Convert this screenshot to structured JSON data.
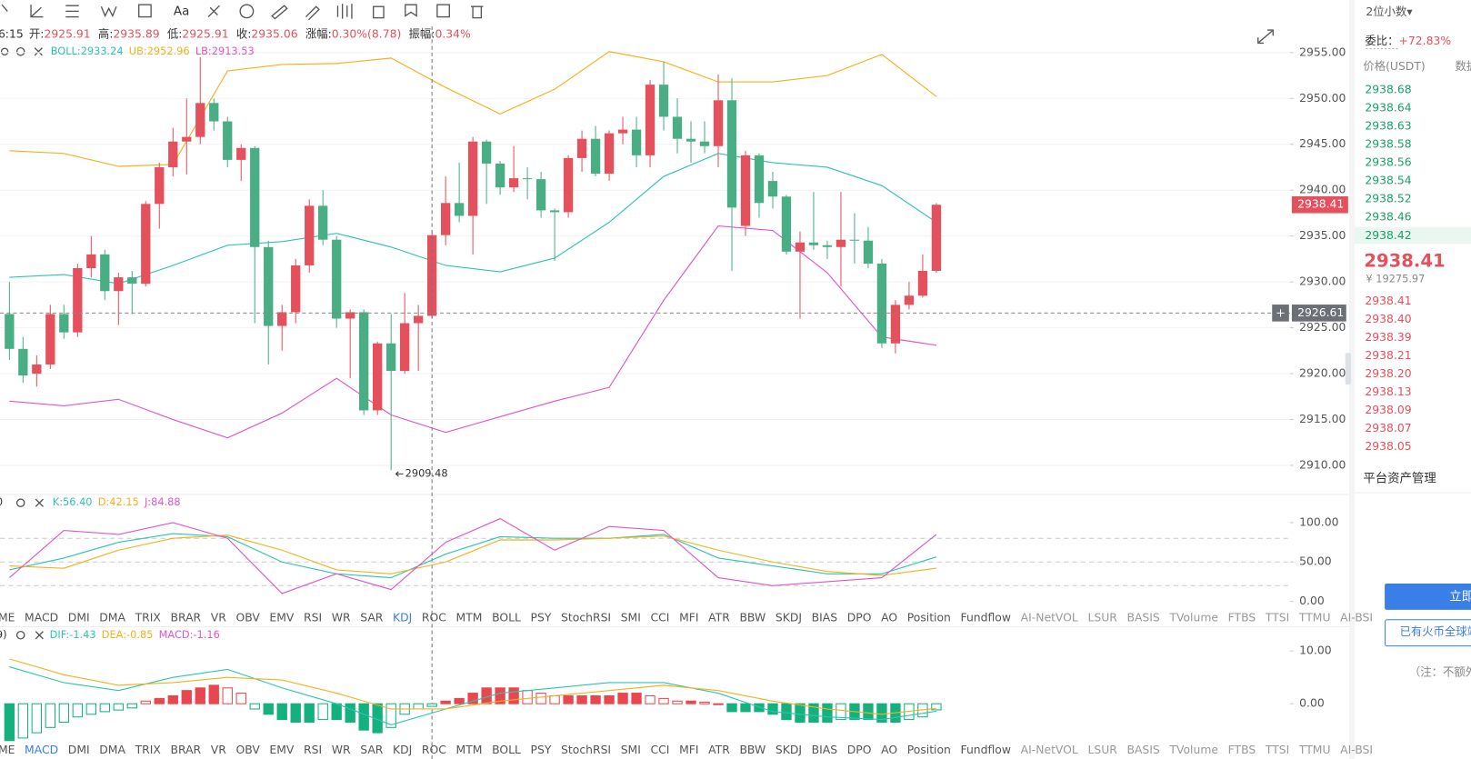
{
  "toolbar": {
    "font_button": "Aa"
  },
  "header": {
    "time": "6:15",
    "items": [
      {
        "label": "开:",
        "value": "2925.91"
      },
      {
        "label": "高:",
        "value": "2935.89"
      },
      {
        "label": "低:",
        "value": "2925.91"
      },
      {
        "label": "收:",
        "value": "2935.06"
      },
      {
        "label": "涨幅:",
        "value": "0.30%(8.78)"
      },
      {
        "label": "振幅:",
        "value": "0.34%"
      }
    ]
  },
  "indicator_tabs": [
    "ME",
    "MACD",
    "DMI",
    "DMA",
    "TRIX",
    "BRAR",
    "VR",
    "OBV",
    "EMV",
    "RSI",
    "WR",
    "SAR",
    "KDJ",
    "ROC",
    "MTM",
    "BOLL",
    "PSY",
    "StochRSI",
    "SMI",
    "CCI",
    "MFI",
    "ATR",
    "BBW",
    "SKDJ",
    "BIAS",
    "DPO",
    "AO",
    "Position",
    "Fundflow",
    "AI-NetVOL",
    "LSUR",
    "BASIS",
    "TVolume",
    "FTBS",
    "TTSI",
    "TTMU",
    "AI-BSI"
  ],
  "chart_data": [
    {
      "type": "candlestick",
      "xlim": [
        -0.69,
        93.94
      ],
      "ylim": [
        2907.04,
        2957.66
      ],
      "grid": true,
      "yticks": [
        {
          "value": 2955,
          "label": "2955.00"
        },
        {
          "value": 2950,
          "label": "2950.00"
        },
        {
          "value": 2945,
          "label": "2945.00"
        },
        {
          "value": 2940,
          "label": "2940.00"
        },
        {
          "value": 2935,
          "label": "2935.00"
        },
        {
          "value": 2930,
          "label": "2930.00"
        },
        {
          "value": 2925,
          "label": "2925.00"
        },
        {
          "value": 2920,
          "label": "2920.00"
        },
        {
          "value": 2915,
          "label": "2915.00"
        },
        {
          "value": 2910,
          "label": "2910.00"
        }
      ],
      "up_color": "#e5505d",
      "down_color": "#4aae85",
      "open": [
        2926.5,
        2922.7,
        2920.0,
        2921.0,
        2926.5,
        2924.5,
        2931.5,
        2933.0,
        2929.0,
        2930.5,
        2929.8,
        2938.5,
        2942.5,
        2945.3,
        2945.8,
        2949.5,
        2947.5,
        2943.3,
        2944.6,
        2933.8,
        2925.2,
        2926.7,
        2931.8,
        2938.3,
        2934.6,
        2926.0,
        2926.7,
        2916.0,
        2923.3,
        2920.3,
        2925.5,
        2926.3,
        2935.1,
        2938.6,
        2937.2,
        2945.3,
        2942.9,
        2940.3,
        2941.3,
        2941.2,
        2937.8,
        2937.6,
        2943.5,
        2945.6,
        2941.8,
        2946.2,
        2946.6,
        2943.8,
        2951.5,
        2948.0,
        2945.6,
        2945.3,
        2944.8,
        2949.8,
        2936.1,
        2943.8,
        2941.0,
        2939.3,
        2933.3,
        2934.3,
        2934.0,
        2933.8,
        2934.6,
        2934.5,
        2932.0,
        2923.3,
        2927.5,
        2928.5,
        2931.2
      ],
      "high": [
        2930.0,
        2924.0,
        2922.0,
        2927.5,
        2927.5,
        2932.0,
        2935.0,
        2933.5,
        2931.0,
        2931.2,
        2938.8,
        2943.0,
        2946.8,
        2950.0,
        2954.5,
        2950.0,
        2948.0,
        2945.0,
        2944.8,
        2934.5,
        2927.5,
        2932.5,
        2939.0,
        2940.0,
        2935.0,
        2927.0,
        2927.0,
        2923.5,
        2926.5,
        2928.8,
        2927.5,
        2935.5,
        2941.5,
        2943.0,
        2945.8,
        2945.5,
        2943.2,
        2944.8,
        2942.5,
        2942.0,
        2938.0,
        2943.8,
        2946.5,
        2947.0,
        2946.5,
        2948.0,
        2948.0,
        2952.0,
        2954.0,
        2950.0,
        2947.5,
        2947.5,
        2952.6,
        2952.2,
        2944.3,
        2944.0,
        2942.0,
        2939.5,
        2935.5,
        2939.8,
        2934.5,
        2939.8,
        2937.5,
        2936.0,
        2932.5,
        2928.0,
        2930.0,
        2933.0,
        2938.6
      ],
      "low": [
        2921.5,
        2919.0,
        2918.6,
        2920.5,
        2923.8,
        2924.0,
        2930.5,
        2928.0,
        2925.3,
        2926.5,
        2929.5,
        2935.8,
        2941.5,
        2941.7,
        2945.0,
        2946.5,
        2942.5,
        2941.0,
        2925.5,
        2921.0,
        2922.5,
        2925.5,
        2931.0,
        2934.0,
        2925.0,
        2919.5,
        2915.5,
        2915.5,
        2909.48,
        2920.0,
        2920.3,
        2926.0,
        2934.0,
        2936.5,
        2933.0,
        2938.5,
        2939.5,
        2939.8,
        2939.0,
        2937.0,
        2932.3,
        2937.0,
        2942.0,
        2941.5,
        2941.0,
        2945.0,
        2942.5,
        2942.5,
        2946.5,
        2944.0,
        2943.0,
        2944.0,
        2942.5,
        2931.2,
        2935.0,
        2937.0,
        2938.0,
        2933.0,
        2926.0,
        2933.5,
        2932.5,
        2929.5,
        2932.0,
        2931.5,
        2922.8,
        2922.2,
        2927.0,
        2928.3,
        2931.0
      ],
      "close": [
        2922.7,
        2919.8,
        2921.0,
        2926.5,
        2924.5,
        2931.5,
        2933.0,
        2929.0,
        2930.5,
        2929.8,
        2938.5,
        2942.5,
        2945.3,
        2945.8,
        2949.5,
        2947.5,
        2943.3,
        2944.6,
        2933.8,
        2925.2,
        2926.7,
        2931.8,
        2938.3,
        2934.6,
        2926.0,
        2926.7,
        2916.0,
        2923.3,
        2920.3,
        2925.5,
        2926.3,
        2935.1,
        2938.6,
        2937.2,
        2945.3,
        2942.9,
        2940.3,
        2941.3,
        2941.2,
        2937.8,
        2937.6,
        2943.5,
        2945.6,
        2941.8,
        2946.2,
        2946.6,
        2943.8,
        2951.5,
        2948.0,
        2945.6,
        2945.3,
        2944.8,
        2949.8,
        2938.1,
        2943.8,
        2938.6,
        2939.3,
        2933.3,
        2934.3,
        2934.0,
        2933.8,
        2934.6,
        2934.5,
        2932.0,
        2923.3,
        2927.5,
        2928.5,
        2931.2,
        2938.41
      ],
      "series": [
        {
          "name": "BOLL:",
          "legend_value": "2933.24",
          "color": "#2ec4b0",
          "x": [
            0,
            4,
            8,
            12,
            16,
            20,
            24,
            28,
            32,
            36,
            40,
            44,
            48,
            52,
            56,
            60,
            64,
            68
          ],
          "values": [
            2930.5,
            2930.8,
            2929.8,
            2931.8,
            2934.0,
            2934.4,
            2935.3,
            2933.8,
            2931.8,
            2931.1,
            2932.6,
            2936.5,
            2941.5,
            2944.0,
            2943.0,
            2942.5,
            2940.5,
            2936.5
          ]
        },
        {
          "name": "UB:",
          "legend_value": "2952.96",
          "color": "#f5b01e",
          "x": [
            0,
            4,
            8,
            12,
            16,
            20,
            24,
            28,
            32,
            36,
            40,
            44,
            48,
            52,
            56,
            60,
            64,
            68
          ],
          "values": [
            2944.3,
            2944.0,
            2942.6,
            2942.8,
            2953.0,
            2953.7,
            2953.8,
            2954.4,
            2951.2,
            2948.3,
            2951.0,
            2955.1,
            2954.0,
            2951.8,
            2951.8,
            2952.5,
            2954.8,
            2950.2
          ]
        },
        {
          "name": "LB:",
          "legend_value": "2913.53",
          "color": "#e056c8",
          "x": [
            0,
            4,
            8,
            12,
            16,
            20,
            24,
            28,
            32,
            36,
            40,
            44,
            48,
            52,
            56,
            60,
            64,
            68
          ],
          "values": [
            2917.0,
            2916.5,
            2917.2,
            2915.0,
            2913.0,
            2915.7,
            2919.5,
            2915.5,
            2913.6,
            2915.3,
            2917.0,
            2918.5,
            2928.0,
            2936.1,
            2935.6,
            2931.0,
            2924.0,
            2923.1
          ]
        }
      ],
      "low_marker": {
        "index": 28,
        "value": 2909.48
      },
      "last_price": 2938.41,
      "crosshair": {
        "index": 31,
        "value": 2926.61
      }
    },
    {
      "type": "line",
      "prefix": "0",
      "xlim": [
        -0.69,
        93.94
      ],
      "ylim": [
        -10.7,
        134.5
      ],
      "yticks": [
        {
          "value": 100,
          "label": "100.00"
        },
        {
          "value": 50,
          "label": "50.00"
        },
        {
          "value": 0,
          "label": "0.00"
        }
      ],
      "reference_lines": [
        80,
        50,
        20
      ],
      "active_tab": 12,
      "series": [
        {
          "name": "K:",
          "legend_value": "56.40",
          "color": "#2ec4b0",
          "x": [
            0,
            4,
            8,
            12,
            16,
            20,
            24,
            28,
            32,
            36,
            40,
            44,
            48,
            52,
            56,
            60,
            64,
            68
          ],
          "values": [
            40,
            55,
            75,
            86,
            82,
            50,
            35,
            30,
            60,
            82,
            80,
            80,
            85,
            55,
            45,
            35,
            35,
            56.4
          ]
        },
        {
          "name": "D:",
          "legend_value": "42.15",
          "color": "#f5b01e",
          "x": [
            0,
            4,
            8,
            12,
            16,
            20,
            24,
            28,
            32,
            36,
            40,
            44,
            48,
            52,
            56,
            60,
            64,
            68
          ],
          "values": [
            45,
            42,
            65,
            80,
            84,
            65,
            40,
            35,
            50,
            78,
            78,
            80,
            83,
            65,
            50,
            38,
            33,
            42.15
          ]
        },
        {
          "name": "J:",
          "legend_value": "84.88",
          "color": "#e056c8",
          "x": [
            0,
            4,
            8,
            12,
            16,
            20,
            24,
            28,
            32,
            36,
            40,
            44,
            48,
            52,
            56,
            60,
            64,
            68
          ],
          "values": [
            30,
            90,
            85,
            100,
            80,
            10,
            35,
            15,
            75,
            105,
            65,
            95,
            90,
            30,
            20,
            25,
            30,
            84.88
          ]
        }
      ]
    },
    {
      "type": "bar",
      "prefix": "9)",
      "xlim": [
        -0.69,
        93.94
      ],
      "ylim": [
        -7.1,
        14.6
      ],
      "yticks": [
        {
          "value": 10,
          "label": "10.00"
        },
        {
          "value": 0,
          "label": "0.00"
        }
      ],
      "active_tab": 1,
      "series": [
        {
          "name": "DIF:",
          "legend_value": "-1.43",
          "color": "#2ec4b0",
          "x": [
            0,
            4,
            8,
            12,
            16,
            20,
            24,
            28,
            32,
            36,
            40,
            44,
            48,
            52,
            56,
            60,
            64,
            68
          ],
          "values": [
            7,
            4,
            2.5,
            5,
            6.5,
            3,
            0,
            -4,
            -1,
            2,
            3,
            4,
            4,
            2,
            -1.5,
            -2.5,
            -3,
            -1.43
          ]
        },
        {
          "name": "DEA:",
          "legend_value": "-0.85",
          "color": "#f5b01e",
          "x": [
            0,
            4,
            8,
            12,
            16,
            20,
            24,
            28,
            32,
            36,
            40,
            44,
            48,
            52,
            56,
            60,
            64,
            68
          ],
          "values": [
            8.5,
            5.5,
            3.5,
            4,
            5,
            4.5,
            2,
            -1,
            -1,
            0.5,
            1.5,
            2.5,
            3.5,
            2.5,
            0.5,
            -1,
            -2,
            -0.85
          ]
        }
      ],
      "histogram": {
        "name": "MACD:",
        "legend_value": "-1.16",
        "color": "#e056c8",
        "up_color": "#e9474f",
        "down_color": "#14b17f",
        "values": [
          -7,
          -6.5,
          -5.5,
          -4.5,
          -3.5,
          -2.5,
          -2,
          -1.5,
          -1.2,
          -0.8,
          0.5,
          1,
          1.5,
          2.5,
          3,
          3.5,
          3,
          2,
          -1,
          -2,
          -3,
          -3.5,
          -3.5,
          -3,
          -3,
          -3.5,
          -5,
          -5.5,
          -4.5,
          -2,
          -1,
          -0.5,
          0.5,
          1,
          2,
          3,
          3,
          3,
          2.5,
          2,
          1.5,
          1.5,
          1.5,
          1.5,
          1.5,
          2,
          2,
          1.5,
          1,
          0.5,
          0.5,
          0.3,
          0,
          -1.5,
          -1.5,
          -1.5,
          -2,
          -3,
          -3.5,
          -3.5,
          -3.5,
          -3,
          -3,
          -3,
          -3.5,
          -3.5,
          -3,
          -2.5,
          -1.16
        ]
      }
    }
  ],
  "order_book": {
    "precision": "2位小数▾",
    "ratio_label": "委比：",
    "ratio": "+72.83%",
    "col_price": "价格(USDT)",
    "col_amount": "数据",
    "upper": [
      "2938.68",
      "2938.64",
      "2938.63",
      "2938.58",
      "2938.56",
      "2938.54",
      "2938.52",
      "2938.46",
      "2938.42"
    ],
    "last_price": "2938.41",
    "cny": "¥ 19275.97",
    "lower": [
      "2938.41",
      "2938.40",
      "2938.39",
      "2938.21",
      "2938.20",
      "2938.13",
      "2938.09",
      "2938.07",
      "2938.05"
    ],
    "section": "平台资产管理",
    "primary_button": "立即",
    "secondary_button": "已有火币全球站",
    "note": "（注：不额外"
  }
}
